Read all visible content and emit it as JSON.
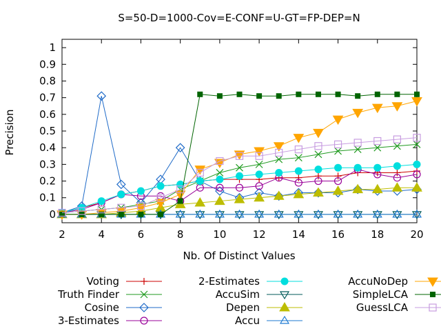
{
  "chart_data": {
    "type": "line",
    "title": "S=50-D=1000-Cov=E-CONF=U-GT=FP-DEP=N",
    "xlabel": "Nb. Of Distinct Values",
    "ylabel": "Precision",
    "xlim": [
      2,
      20
    ],
    "ylim": [
      -0.05,
      1.05
    ],
    "xticks": [
      2,
      4,
      6,
      8,
      10,
      12,
      14,
      16,
      18,
      20
    ],
    "yticks": [
      0,
      0.1,
      0.2,
      0.3,
      0.4,
      0.5,
      0.6,
      0.7,
      0.8,
      0.9,
      1
    ],
    "grid": false,
    "legend_position": "below",
    "x": [
      2,
      3,
      4,
      5,
      6,
      7,
      8,
      9,
      10,
      11,
      12,
      13,
      14,
      15,
      16,
      17,
      18,
      19,
      20
    ],
    "series": [
      {
        "name": "Voting",
        "color": "#cc0000",
        "marker": "plus",
        "values": [
          0.01,
          0.04,
          0.07,
          0.12,
          0.14,
          0.17,
          0.18,
          0.2,
          0.21,
          0.21,
          0.21,
          0.22,
          0.22,
          0.23,
          0.23,
          0.25,
          0.25,
          0.25,
          0.26
        ]
      },
      {
        "name": "Truth Finder",
        "color": "#1f9a1f",
        "marker": "cross",
        "values": [
          0.01,
          0.02,
          0.03,
          0.04,
          0.06,
          0.08,
          0.15,
          0.2,
          0.25,
          0.28,
          0.3,
          0.33,
          0.34,
          0.36,
          0.38,
          0.39,
          0.4,
          0.41,
          0.42
        ]
      },
      {
        "name": "Cosine",
        "color": "#1e6ac8",
        "marker": "diamond",
        "values": [
          0.01,
          0.05,
          0.71,
          0.18,
          0.07,
          0.21,
          0.4,
          0.2,
          0.14,
          0.1,
          0.13,
          0.11,
          0.13,
          0.13,
          0.13,
          0.15,
          0.14,
          0.14,
          0.15
        ]
      },
      {
        "name": "3-Estimates",
        "color": "#990099",
        "marker": "circle",
        "values": [
          0.01,
          0.03,
          0.07,
          0.12,
          0.11,
          0.11,
          0.08,
          0.16,
          0.16,
          0.16,
          0.17,
          0.22,
          0.19,
          0.2,
          0.2,
          0.27,
          0.24,
          0.22,
          0.24
        ]
      },
      {
        "name": "2-Estimates",
        "color": "#00dede",
        "marker": "filled-circle",
        "values": [
          0.01,
          0.04,
          0.08,
          0.12,
          0.14,
          0.17,
          0.18,
          0.2,
          0.21,
          0.23,
          0.24,
          0.25,
          0.26,
          0.27,
          0.28,
          0.28,
          0.28,
          0.29,
          0.3
        ]
      },
      {
        "name": "AccuSim",
        "color": "#005a5a",
        "marker": "down-triangle",
        "values": [
          0.0,
          0.0,
          0.0,
          0.0,
          0.0,
          0.0,
          0.0,
          0.0,
          0.0,
          0.0,
          0.0,
          0.0,
          0.0,
          0.0,
          0.0,
          0.0,
          0.0,
          0.0,
          0.0
        ]
      },
      {
        "name": "Depen",
        "color": "#bdbd00",
        "marker": "filled-up-triangle",
        "values": [
          0.0,
          0.0,
          0.0,
          0.01,
          0.02,
          0.04,
          0.06,
          0.07,
          0.08,
          0.09,
          0.1,
          0.11,
          0.12,
          0.13,
          0.14,
          0.15,
          0.15,
          0.16,
          0.16
        ]
      },
      {
        "name": "Accu",
        "color": "#1e7ad2",
        "marker": "up-triangle",
        "values": [
          0.0,
          0.0,
          0.0,
          0.0,
          0.0,
          0.0,
          0.0,
          0.0,
          0.0,
          0.0,
          0.0,
          0.0,
          0.0,
          0.0,
          0.0,
          0.0,
          0.0,
          0.0,
          0.0
        ]
      },
      {
        "name": "AccuNoDep",
        "color": "#ffa500",
        "marker": "filled-down-triangle",
        "values": [
          0.0,
          0.0,
          0.01,
          0.02,
          0.04,
          0.07,
          0.12,
          0.27,
          0.31,
          0.36,
          0.38,
          0.41,
          0.46,
          0.49,
          0.57,
          0.61,
          0.64,
          0.65,
          0.68
        ]
      },
      {
        "name": "SimpleLCA",
        "color": "#006400",
        "marker": "filled-square",
        "values": [
          0.0,
          0.0,
          0.0,
          0.0,
          0.0,
          0.0,
          0.08,
          0.72,
          0.71,
          0.72,
          0.71,
          0.71,
          0.72,
          0.72,
          0.72,
          0.71,
          0.72,
          0.72,
          0.72
        ]
      },
      {
        "name": "GuessLCA",
        "color": "#c79ce0",
        "marker": "square",
        "values": [
          0.01,
          0.02,
          0.03,
          0.04,
          0.05,
          0.1,
          0.15,
          0.25,
          0.32,
          0.35,
          0.35,
          0.37,
          0.39,
          0.41,
          0.42,
          0.43,
          0.44,
          0.45,
          0.46
        ]
      }
    ]
  }
}
